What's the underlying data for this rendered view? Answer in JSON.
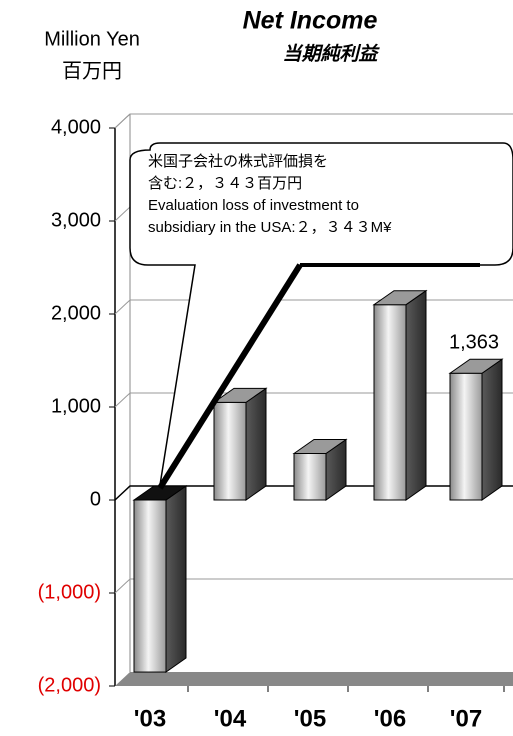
{
  "chart_data": {
    "type": "bar3d",
    "title": "Net Income",
    "subtitle": "当期純利益",
    "y_label": "Million Yen",
    "y_label_sub": "百万円",
    "categories": [
      "'03",
      "'04",
      "'05",
      "'06",
      "'07"
    ],
    "values": [
      -1850,
      1050,
      500,
      2100,
      1363
    ],
    "value_labels": [
      null,
      null,
      null,
      null,
      "1,363"
    ],
    "ylim": [
      -2000,
      4000
    ],
    "yticks": [
      {
        "value": -2000,
        "label": "(2,000)"
      },
      {
        "value": -1000,
        "label": "(1,000)"
      },
      0,
      {
        "value": 1000,
        "label": "1,000"
      },
      {
        "value": 2000,
        "label": "2,000"
      },
      {
        "value": 3000,
        "label": "3,000"
      },
      {
        "value": 4000,
        "label": "4,000"
      }
    ],
    "negative_tick_color": "#e00000",
    "grid": true,
    "annotation": [
      "米国子会社の株式評価損を",
      "含む:２，３４３百万円",
      "Evaluation loss of investment to",
      "subsidiary in the USA:２，３４３M¥"
    ]
  }
}
